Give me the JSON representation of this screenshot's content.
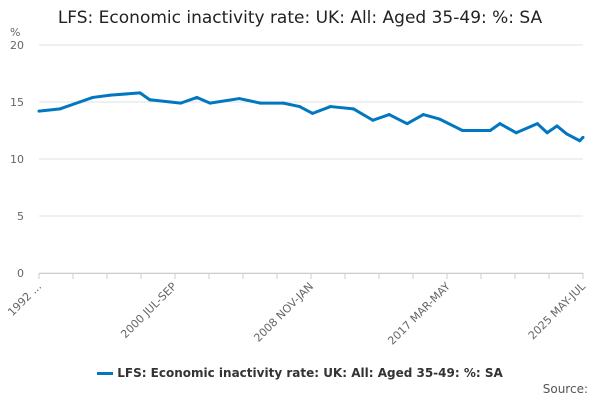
{
  "chart_data": {
    "type": "line",
    "title": "LFS: Economic inactivity rate: UK: All: Aged 35-49: %: SA",
    "ylabel": "%",
    "xlabel": "",
    "ylim": [
      0,
      20
    ],
    "yticks": [
      "0",
      "5",
      "10",
      "15",
      "20"
    ],
    "xlim": [
      1992.0,
      2025.4
    ],
    "xticks": [
      {
        "label": "1992 ...",
        "x": 1992.0
      },
      {
        "label": "2000 JUL-SEP",
        "x": 2000.3
      },
      {
        "label": "2008 NOV-JAN",
        "x": 2008.7
      },
      {
        "label": "2017 MAR-MAY",
        "x": 2017.1
      },
      {
        "label": "2025 MAY-JUL",
        "x": 2025.4
      }
    ],
    "grid": true,
    "legend_position": "bottom",
    "series": [
      {
        "name": "LFS: Economic inactivity rate: UK: All: Aged 35-49: %: SA",
        "color": "#0077c0",
        "points": [
          [
            1992.0,
            14.2
          ],
          [
            1993.3,
            14.4
          ],
          [
            1994.5,
            15.0
          ],
          [
            1995.3,
            15.4
          ],
          [
            1996.4,
            15.6
          ],
          [
            1998.2,
            15.8
          ],
          [
            1998.8,
            15.2
          ],
          [
            2000.7,
            14.9
          ],
          [
            2001.7,
            15.4
          ],
          [
            2002.5,
            14.9
          ],
          [
            2004.3,
            15.3
          ],
          [
            2005.6,
            14.9
          ],
          [
            2007.0,
            14.9
          ],
          [
            2008.0,
            14.6
          ],
          [
            2008.8,
            14.0
          ],
          [
            2009.9,
            14.6
          ],
          [
            2011.3,
            14.4
          ],
          [
            2012.5,
            13.4
          ],
          [
            2013.5,
            13.9
          ],
          [
            2014.6,
            13.1
          ],
          [
            2015.6,
            13.9
          ],
          [
            2016.6,
            13.5
          ],
          [
            2018.0,
            12.5
          ],
          [
            2019.7,
            12.5
          ],
          [
            2020.3,
            13.1
          ],
          [
            2021.3,
            12.3
          ],
          [
            2022.6,
            13.1
          ],
          [
            2023.2,
            12.3
          ],
          [
            2023.8,
            12.9
          ],
          [
            2024.4,
            12.2
          ],
          [
            2025.2,
            11.6
          ],
          [
            2025.4,
            11.9
          ]
        ]
      }
    ]
  },
  "source_label": "Source:"
}
